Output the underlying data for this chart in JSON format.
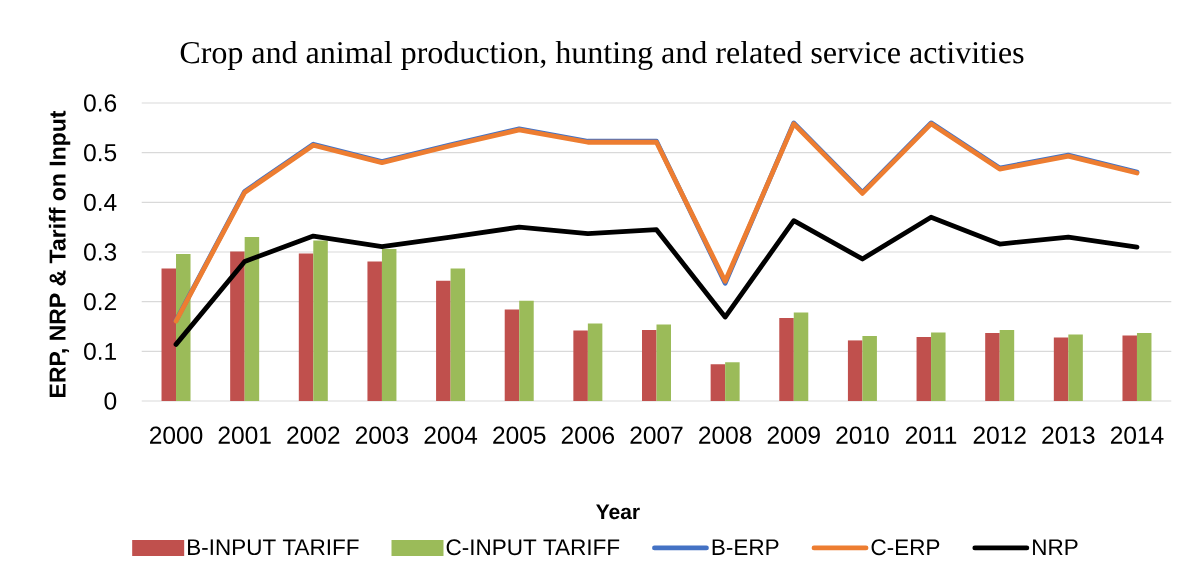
{
  "chart_data": {
    "type": "bar",
    "title": "Crop and animal production, hunting and related service activities",
    "xlabel": "Year",
    "ylabel": "ERP, NRP & Tariff on Input",
    "categories": [
      "2000",
      "2001",
      "2002",
      "2003",
      "2004",
      "2005",
      "2006",
      "2007",
      "2008",
      "2009",
      "2010",
      "2011",
      "2012",
      "2013",
      "2014"
    ],
    "series": [
      {
        "name": "B-INPUT TARIFF",
        "color": "#c0504d",
        "values": [
          0.267,
          0.301,
          0.297,
          0.281,
          0.242,
          0.184,
          0.142,
          0.143,
          0.074,
          0.167,
          0.122,
          0.129,
          0.137,
          0.128,
          0.132
        ]
      },
      {
        "name": "C-INPUT TARIFF",
        "color": "#9bbb59",
        "values": [
          0.296,
          0.33,
          0.323,
          0.306,
          0.267,
          0.202,
          0.156,
          0.154,
          0.078,
          0.178,
          0.131,
          0.138,
          0.143,
          0.134,
          0.137
        ]
      },
      {
        "name": "B-ERP",
        "type": "line",
        "color": "#4472c4",
        "values": [
          0.162,
          0.422,
          0.517,
          0.482,
          0.516,
          0.548,
          0.523,
          0.523,
          0.237,
          0.56,
          0.42,
          0.56,
          0.469,
          0.495,
          0.461
        ]
      },
      {
        "name": "C-ERP",
        "type": "line",
        "color": "#ed7d31",
        "values": [
          0.161,
          0.42,
          0.515,
          0.48,
          0.514,
          0.546,
          0.521,
          0.521,
          0.241,
          0.558,
          0.418,
          0.558,
          0.467,
          0.493,
          0.459
        ]
      },
      {
        "name": "NRP",
        "type": "line",
        "color": "#000000",
        "values": [
          0.114,
          0.281,
          0.332,
          0.311,
          0.33,
          0.35,
          0.337,
          0.345,
          0.169,
          0.363,
          0.286,
          0.37,
          0.316,
          0.33,
          0.31
        ]
      }
    ],
    "ylim": [
      0,
      0.6
    ],
    "yticks": [
      0,
      0.1,
      0.2,
      0.3,
      0.4,
      0.5,
      0.6
    ],
    "grid": "y",
    "legend": "bottom"
  }
}
